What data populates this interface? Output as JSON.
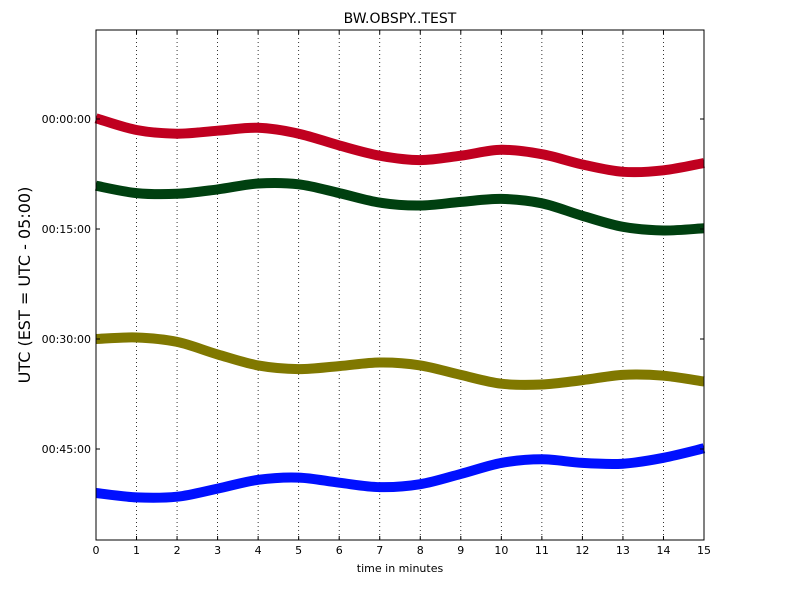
{
  "chart_data": {
    "type": "line",
    "title": "BW.OBSPY..TEST",
    "xlabel": "time in minutes",
    "ylabel": "UTC (EST = UTC - 05:00)",
    "xlim": [
      0,
      15
    ],
    "x_ticks": [
      0,
      1,
      2,
      3,
      4,
      5,
      6,
      7,
      8,
      9,
      10,
      11,
      12,
      13,
      14,
      15
    ],
    "y_ticks": [
      "00:00:00",
      "00:15:00",
      "00:30:00",
      "00:45:00"
    ],
    "grid": "vertical-dotted",
    "series": [
      {
        "color": "#c00020",
        "x": [
          0,
          1,
          2,
          3,
          4,
          5,
          6,
          7,
          8,
          9,
          10,
          11,
          12,
          13,
          14,
          15
        ],
        "y": [
          -0.1,
          1.5,
          2.0,
          1.6,
          1.2,
          2.0,
          3.6,
          5.0,
          5.6,
          5.0,
          4.2,
          4.8,
          6.2,
          7.2,
          7.0,
          6.0
        ]
      },
      {
        "color": "#004010",
        "x": [
          0,
          1,
          2,
          3,
          4,
          5,
          6,
          7,
          8,
          9,
          10,
          11,
          12,
          13,
          14,
          15
        ],
        "y": [
          9.1,
          10.1,
          10.2,
          9.6,
          8.8,
          8.9,
          10.1,
          11.4,
          11.8,
          11.3,
          10.9,
          11.5,
          13.2,
          14.7,
          15.2,
          14.9
        ]
      },
      {
        "color": "#807800",
        "x": [
          0,
          1,
          2,
          3,
          4,
          5,
          6,
          7,
          8,
          9,
          10,
          11,
          12,
          13,
          14,
          15
        ],
        "y": [
          30.0,
          29.8,
          30.4,
          32.1,
          33.6,
          34.1,
          33.7,
          33.2,
          33.6,
          34.9,
          36.1,
          36.2,
          35.6,
          34.9,
          35.0,
          35.8
        ]
      },
      {
        "color": "#0010ff",
        "x": [
          0,
          1,
          2,
          3,
          4,
          5,
          6,
          7,
          8,
          9,
          10,
          11,
          12,
          13,
          14,
          15
        ],
        "y": [
          51.0,
          51.6,
          51.5,
          50.4,
          49.2,
          48.9,
          49.6,
          50.2,
          49.8,
          48.4,
          46.9,
          46.4,
          46.9,
          47.0,
          46.2,
          44.9
        ]
      }
    ]
  }
}
